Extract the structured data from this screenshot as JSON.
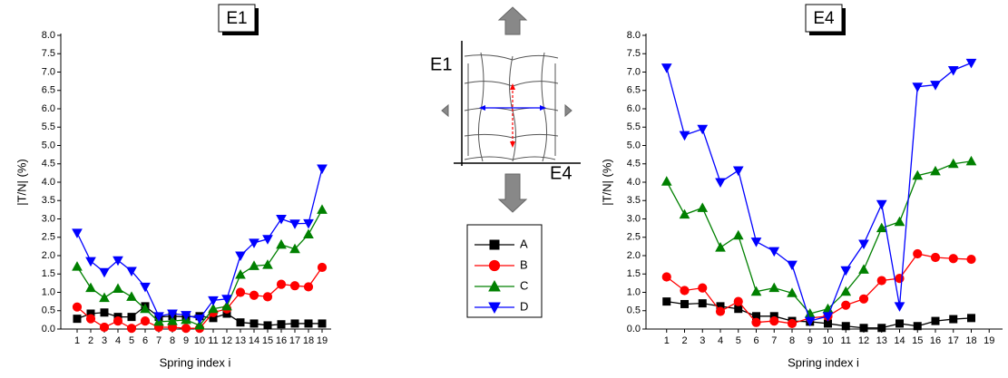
{
  "chart_data": [
    {
      "type": "line",
      "title": "E1",
      "y_label": "|T/N| (%)",
      "x_label": "Spring index i",
      "xlim": [
        0,
        20
      ],
      "xticks": [
        1,
        2,
        3,
        4,
        5,
        6,
        7,
        8,
        9,
        10,
        11,
        12,
        13,
        14,
        15,
        16,
        17,
        18,
        19
      ],
      "ylim": [
        0,
        8
      ],
      "yticks": [
        {
          "value": 0,
          "label": "0.0"
        },
        0.5,
        {
          "value": 1,
          "label": "1.0"
        },
        1.5,
        {
          "value": 2,
          "label": "2.0"
        },
        2.5,
        {
          "value": 3,
          "label": "3.0"
        },
        3.5,
        {
          "value": 4,
          "label": "4.0"
        },
        4.5,
        {
          "value": 5,
          "label": "5.0"
        },
        5.5,
        {
          "value": 6,
          "label": "6.0"
        },
        6.5,
        {
          "value": 7,
          "label": "7.0"
        },
        7.5,
        {
          "value": 8,
          "label": "8.0"
        }
      ],
      "x": [
        1,
        2,
        3,
        4,
        5,
        6,
        7,
        8,
        9,
        10,
        11,
        12,
        13,
        14,
        15,
        16,
        17,
        18,
        19
      ],
      "series": [
        {
          "name": "A",
          "color": "#000000",
          "marker": "square",
          "values": [
            0.28,
            0.42,
            0.45,
            0.33,
            0.33,
            0.62,
            0.33,
            0.35,
            0.33,
            0.35,
            0.3,
            0.42,
            0.18,
            0.15,
            0.1,
            0.13,
            0.15,
            0.15,
            0.15
          ]
        },
        {
          "name": "B",
          "color": "#ff0000",
          "marker": "circle",
          "values": [
            0.6,
            0.28,
            0.05,
            0.22,
            0.02,
            0.22,
            0.05,
            0.05,
            0.02,
            0.02,
            0.45,
            0.55,
            1.0,
            0.92,
            0.88,
            1.22,
            1.18,
            1.15,
            1.68
          ]
        },
        {
          "name": "C",
          "color": "#008000",
          "marker": "triangle-up",
          "values": [
            1.7,
            1.12,
            0.85,
            1.1,
            0.88,
            0.55,
            0.2,
            0.22,
            0.25,
            0.1,
            0.55,
            0.62,
            1.48,
            1.72,
            1.75,
            2.3,
            2.18,
            2.58,
            3.25
          ]
        },
        {
          "name": "D",
          "color": "#0000ff",
          "marker": "triangle-down",
          "values": [
            2.62,
            1.85,
            1.55,
            1.87,
            1.58,
            1.15,
            0.35,
            0.42,
            0.38,
            0.28,
            0.78,
            0.82,
            2.0,
            2.35,
            2.45,
            3.0,
            2.87,
            2.88,
            4.37
          ]
        }
      ]
    },
    {
      "type": "line",
      "title": "E4",
      "y_label": "|T/N| (%)",
      "x_label": "Spring index i",
      "xlim": [
        0,
        20
      ],
      "xticks": [
        1,
        2,
        3,
        4,
        5,
        6,
        7,
        8,
        9,
        10,
        11,
        12,
        13,
        14,
        15,
        16,
        17,
        18,
        19
      ],
      "ylim": [
        0,
        8
      ],
      "yticks": [
        {
          "value": 0,
          "label": "0.0"
        },
        0.5,
        {
          "value": 1,
          "label": "1.0"
        },
        1.5,
        {
          "value": 2,
          "label": "2.0"
        },
        2.5,
        {
          "value": 3,
          "label": "3.0"
        },
        3.5,
        {
          "value": 4,
          "label": "4.0"
        },
        4.5,
        {
          "value": 5,
          "label": "5.0"
        },
        5.5,
        {
          "value": 6,
          "label": "6.0"
        },
        6.5,
        {
          "value": 7,
          "label": "7.0"
        },
        7.5,
        {
          "value": 8,
          "label": "8.0"
        }
      ],
      "x": [
        1,
        2,
        3,
        4,
        5,
        6,
        7,
        8,
        9,
        10,
        11,
        12,
        13,
        14,
        15,
        16,
        17,
        18
      ],
      "series": [
        {
          "color": "#000000",
          "marker": "square",
          "values": [
            0.75,
            0.68,
            0.7,
            0.62,
            0.55,
            0.35,
            0.35,
            0.22,
            0.2,
            0.15,
            0.08,
            0.03,
            0.03,
            0.15,
            0.08,
            0.22,
            0.27,
            0.3
          ]
        },
        {
          "color": "#ff0000",
          "marker": "circle",
          "values": [
            1.42,
            1.05,
            1.12,
            0.48,
            0.75,
            0.18,
            0.22,
            0.15,
            0.3,
            0.35,
            0.65,
            0.82,
            1.32,
            1.38,
            2.05,
            1.95,
            1.92,
            1.9
          ]
        },
        {
          "color": "#008000",
          "marker": "triangle-up",
          "values": [
            4.02,
            3.12,
            3.3,
            2.22,
            2.55,
            1.02,
            1.12,
            0.98,
            0.42,
            0.55,
            1.02,
            1.62,
            2.75,
            2.92,
            4.18,
            4.3,
            4.5,
            4.57
          ]
        },
        {
          "color": "#0000ff",
          "marker": "triangle-down",
          "values": [
            7.12,
            5.28,
            5.45,
            4.0,
            4.32,
            2.38,
            2.12,
            1.75,
            0.22,
            0.35,
            1.6,
            2.32,
            3.4,
            0.62,
            6.6,
            6.65,
            7.05,
            7.25
          ]
        }
      ]
    }
  ],
  "diagram": {
    "y_label": "E1",
    "x_label": "E4"
  }
}
